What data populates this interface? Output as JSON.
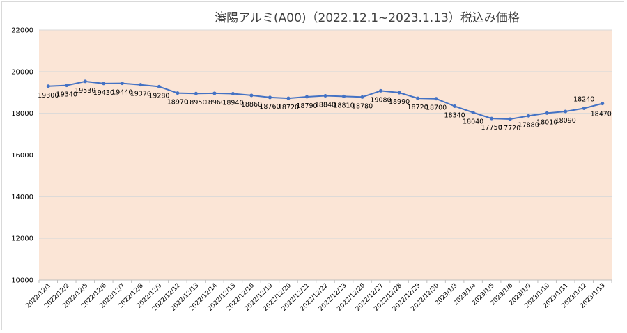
{
  "chart_data": {
    "type": "line",
    "title": "瀋陽アルミ(A00)（2022.12.1~2023.1.13）税込み価格",
    "xlabel": "",
    "ylabel": "",
    "ylim": [
      10000,
      22000
    ],
    "yticks": [
      10000,
      12000,
      14000,
      16000,
      18000,
      20000,
      22000
    ],
    "grid": true,
    "legend": "none",
    "plot_background": "#fbe5d6",
    "line_color": "#4472c4",
    "categories": [
      "2022/12/1",
      "2022/12/2",
      "2022/12/5",
      "2022/12/6",
      "2022/12/7",
      "2022/12/8",
      "2022/12/9",
      "2022/12/12",
      "2022/12/13",
      "2022/12/14",
      "2022/12/15",
      "2022/12/16",
      "2022/12/19",
      "2022/12/20",
      "2022/12/21",
      "2022/12/22",
      "2022/12/23",
      "2022/12/26",
      "2022/12/27",
      "2022/12/28",
      "2022/12/29",
      "2022/12/30",
      "2023/1/3",
      "2023/1/4",
      "2023/1/5",
      "2023/1/6",
      "2023/1/9",
      "2023/1/10",
      "2023/1/11",
      "2023/1/12",
      "2023/1/13"
    ],
    "series": [
      {
        "values": [
          19300,
          19340,
          19530,
          19430,
          19440,
          19370,
          19280,
          18970,
          18950,
          18960,
          18940,
          18860,
          18760,
          18720,
          18790,
          18840,
          18810,
          18780,
          19080,
          18990,
          18720,
          18700,
          18340,
          18040,
          17750,
          17720,
          17880,
          18010,
          18090,
          18240,
          18470
        ]
      }
    ]
  }
}
